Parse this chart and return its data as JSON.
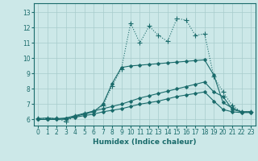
{
  "background_color": "#cce8e8",
  "grid_color": "#a8cccc",
  "line_color": "#1a6b6b",
  "xlabel": "Humidex (Indice chaleur)",
  "xlim": [
    -0.5,
    23.5
  ],
  "ylim": [
    5.6,
    13.6
  ],
  "yticks": [
    6,
    7,
    8,
    9,
    10,
    11,
    12,
    13
  ],
  "xticks": [
    0,
    1,
    2,
    3,
    4,
    5,
    6,
    7,
    8,
    9,
    10,
    11,
    12,
    13,
    14,
    15,
    16,
    17,
    18,
    19,
    20,
    21,
    22,
    23
  ],
  "lines": [
    {
      "x": [
        0,
        1,
        2,
        3,
        4,
        5,
        6,
        7,
        8,
        9,
        10,
        11,
        12,
        13,
        14,
        15,
        16,
        17,
        18,
        19,
        20,
        21,
        22,
        23
      ],
      "y": [
        6.05,
        6.1,
        6.05,
        5.85,
        6.25,
        6.4,
        6.55,
        6.9,
        8.2,
        9.3,
        12.3,
        11.0,
        12.1,
        11.5,
        11.1,
        12.6,
        12.5,
        11.5,
        11.6,
        8.8,
        7.8,
        6.9,
        6.5,
        6.5
      ],
      "marker": "+",
      "markersize": 4,
      "linewidth": 0.8,
      "linestyle": ":"
    },
    {
      "x": [
        0,
        1,
        2,
        3,
        4,
        5,
        6,
        7,
        8,
        9,
        10,
        11,
        12,
        13,
        14,
        15,
        16,
        17,
        18,
        19,
        20,
        21,
        22,
        23
      ],
      "y": [
        6.05,
        6.1,
        6.05,
        6.0,
        6.2,
        6.35,
        6.5,
        7.0,
        8.35,
        9.4,
        9.5,
        9.55,
        9.6,
        9.65,
        9.7,
        9.75,
        9.8,
        9.85,
        9.9,
        8.9,
        7.1,
        6.75,
        6.5,
        6.5
      ],
      "marker": "D",
      "markersize": 2,
      "linewidth": 0.8,
      "linestyle": "-"
    },
    {
      "x": [
        0,
        1,
        2,
        3,
        4,
        5,
        6,
        7,
        8,
        9,
        10,
        11,
        12,
        13,
        14,
        15,
        16,
        17,
        18,
        19,
        20,
        21,
        22,
        23
      ],
      "y": [
        6.0,
        6.0,
        6.05,
        6.1,
        6.25,
        6.4,
        6.55,
        6.7,
        6.85,
        7.0,
        7.2,
        7.4,
        7.55,
        7.7,
        7.85,
        8.0,
        8.15,
        8.3,
        8.45,
        7.8,
        7.5,
        6.65,
        6.5,
        6.5
      ],
      "marker": "D",
      "markersize": 2,
      "linewidth": 0.8,
      "linestyle": "-"
    },
    {
      "x": [
        0,
        1,
        2,
        3,
        4,
        5,
        6,
        7,
        8,
        9,
        10,
        11,
        12,
        13,
        14,
        15,
        16,
        17,
        18,
        19,
        20,
        21,
        22,
        23
      ],
      "y": [
        6.0,
        6.0,
        6.0,
        6.05,
        6.15,
        6.25,
        6.35,
        6.5,
        6.6,
        6.7,
        6.85,
        7.0,
        7.1,
        7.2,
        7.35,
        7.5,
        7.6,
        7.7,
        7.8,
        7.2,
        6.65,
        6.5,
        6.45,
        6.45
      ],
      "marker": "D",
      "markersize": 2,
      "linewidth": 0.8,
      "linestyle": "-"
    }
  ]
}
